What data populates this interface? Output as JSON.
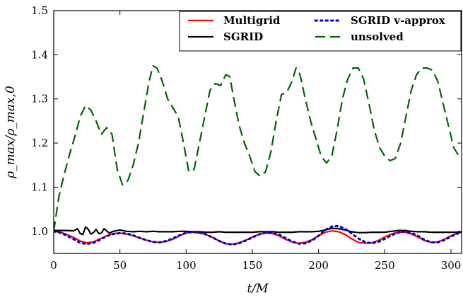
{
  "chart_data": {
    "type": "line",
    "title": "",
    "xlabel": "t/M",
    "ylabel": "ρ_max/ρ_max,0",
    "xlim": [
      0,
      308
    ],
    "ylim": [
      0.95,
      1.5
    ],
    "xticks": [
      0,
      50,
      100,
      150,
      200,
      250,
      300
    ],
    "yticks": [
      1.0,
      1.1,
      1.2,
      1.3,
      1.4,
      1.5
    ],
    "xtick_labels": [
      "0",
      "50",
      "100",
      "150",
      "200",
      "250",
      "300"
    ],
    "ytick_labels": [
      "1.0",
      "1.1",
      "1.2",
      "1.3",
      "1.4",
      "1.5"
    ],
    "grid": false,
    "legend_position": "top-right",
    "series": [
      {
        "name": "Multigrid",
        "color": "#ff0000",
        "dash": "solid",
        "points": [
          [
            0,
            1.0
          ],
          [
            5,
            0.998
          ],
          [
            10,
            0.993
          ],
          [
            15,
            0.986
          ],
          [
            20,
            0.978
          ],
          [
            25,
            0.974
          ],
          [
            30,
            0.976
          ],
          [
            35,
            0.983
          ],
          [
            40,
            0.99
          ],
          [
            45,
            0.995
          ],
          [
            50,
            0.996
          ],
          [
            55,
            0.994
          ],
          [
            60,
            0.99
          ],
          [
            65,
            0.985
          ],
          [
            70,
            0.98
          ],
          [
            75,
            0.976
          ],
          [
            80,
            0.975
          ],
          [
            85,
            0.977
          ],
          [
            90,
            0.982
          ],
          [
            95,
            0.99
          ],
          [
            100,
            0.996
          ],
          [
            105,
            0.998
          ],
          [
            110,
            0.996
          ],
          [
            115,
            0.993
          ],
          [
            120,
            0.986
          ],
          [
            125,
            0.978
          ],
          [
            130,
            0.972
          ],
          [
            135,
            0.971
          ],
          [
            140,
            0.974
          ],
          [
            145,
            0.98
          ],
          [
            150,
            0.987
          ],
          [
            155,
            0.993
          ],
          [
            160,
            0.996
          ],
          [
            165,
            0.995
          ],
          [
            170,
            0.99
          ],
          [
            175,
            0.982
          ],
          [
            180,
            0.976
          ],
          [
            185,
            0.973
          ],
          [
            190,
            0.975
          ],
          [
            195,
            0.981
          ],
          [
            200,
            0.99
          ],
          [
            205,
            0.998
          ],
          [
            210,
            1.001
          ],
          [
            215,
            0.999
          ],
          [
            220,
            0.993
          ],
          [
            225,
            0.983
          ],
          [
            230,
            0.975
          ],
          [
            235,
            0.973
          ],
          [
            240,
            0.974
          ],
          [
            245,
            0.979
          ],
          [
            250,
            0.987
          ],
          [
            255,
            0.994
          ],
          [
            260,
            0.998
          ],
          [
            265,
            0.998
          ],
          [
            270,
            0.994
          ],
          [
            275,
            0.987
          ],
          [
            280,
            0.979
          ],
          [
            285,
            0.975
          ],
          [
            290,
            0.976
          ],
          [
            295,
            0.982
          ],
          [
            300,
            0.99
          ],
          [
            305,
            0.996
          ],
          [
            308,
            0.998
          ]
        ]
      },
      {
        "name": "SGRID",
        "color": "#000000",
        "dash": "solid",
        "points": [
          [
            0,
            1.002
          ],
          [
            5,
            1.002
          ],
          [
            10,
            1.002
          ],
          [
            15,
            1.001
          ],
          [
            18,
            1.006
          ],
          [
            20,
            0.995
          ],
          [
            22,
            0.993
          ],
          [
            24,
            1.01
          ],
          [
            26,
            1.005
          ],
          [
            28,
            0.994
          ],
          [
            30,
            0.997
          ],
          [
            32,
            1.004
          ],
          [
            34,
            0.995
          ],
          [
            36,
            0.996
          ],
          [
            38,
            1.006
          ],
          [
            40,
            1.001
          ],
          [
            42,
            0.996
          ],
          [
            45,
            1.0
          ],
          [
            50,
            1.003
          ],
          [
            55,
            1.0
          ],
          [
            60,
            0.999
          ],
          [
            65,
            1.0
          ],
          [
            70,
            0.999
          ],
          [
            75,
            1.0
          ],
          [
            80,
            0.999
          ],
          [
            85,
            0.999
          ],
          [
            90,
            0.999
          ],
          [
            95,
            1.0
          ],
          [
            100,
            1.0
          ],
          [
            105,
            0.999
          ],
          [
            110,
            0.999
          ],
          [
            115,
            0.998
          ],
          [
            120,
            0.998
          ],
          [
            125,
            0.999
          ],
          [
            130,
            0.998
          ],
          [
            135,
            0.998
          ],
          [
            140,
            0.998
          ],
          [
            145,
            0.998
          ],
          [
            150,
            0.998
          ],
          [
            155,
            0.999
          ],
          [
            160,
            0.999
          ],
          [
            165,
            0.999
          ],
          [
            170,
            0.998
          ],
          [
            175,
            0.998
          ],
          [
            180,
            0.998
          ],
          [
            185,
            0.999
          ],
          [
            190,
            0.999
          ],
          [
            195,
            0.999
          ],
          [
            200,
            1.0
          ],
          [
            205,
            1.003
          ],
          [
            210,
            1.007
          ],
          [
            215,
            1.006
          ],
          [
            220,
            1.003
          ],
          [
            225,
            0.999
          ],
          [
            230,
            0.997
          ],
          [
            235,
            0.997
          ],
          [
            240,
            0.998
          ],
          [
            245,
            0.998
          ],
          [
            250,
            0.998
          ],
          [
            255,
            1.0
          ],
          [
            260,
            1.002
          ],
          [
            265,
            1.002
          ],
          [
            270,
            1.0
          ],
          [
            275,
            0.999
          ],
          [
            280,
            0.999
          ],
          [
            285,
            0.998
          ],
          [
            290,
            0.998
          ],
          [
            295,
            0.998
          ],
          [
            300,
            0.998
          ],
          [
            305,
            0.998
          ],
          [
            308,
            0.998
          ]
        ]
      },
      {
        "name": "SGRID v-approx",
        "color": "#0000cc",
        "dash": "dotted",
        "points": [
          [
            0,
            1.0
          ],
          [
            5,
            0.997
          ],
          [
            10,
            0.99
          ],
          [
            15,
            0.982
          ],
          [
            20,
            0.974
          ],
          [
            25,
            0.971
          ],
          [
            30,
            0.974
          ],
          [
            35,
            0.981
          ],
          [
            40,
            0.989
          ],
          [
            45,
            0.994
          ],
          [
            50,
            0.996
          ],
          [
            55,
            0.995
          ],
          [
            60,
            0.991
          ],
          [
            65,
            0.985
          ],
          [
            70,
            0.98
          ],
          [
            75,
            0.976
          ],
          [
            80,
            0.975
          ],
          [
            85,
            0.978
          ],
          [
            90,
            0.984
          ],
          [
            95,
            0.991
          ],
          [
            100,
            0.997
          ],
          [
            105,
            0.999
          ],
          [
            110,
            0.997
          ],
          [
            115,
            0.993
          ],
          [
            120,
            0.986
          ],
          [
            125,
            0.978
          ],
          [
            130,
            0.972
          ],
          [
            135,
            0.97
          ],
          [
            140,
            0.973
          ],
          [
            145,
            0.979
          ],
          [
            150,
            0.986
          ],
          [
            155,
            0.993
          ],
          [
            160,
            0.997
          ],
          [
            165,
            0.997
          ],
          [
            170,
            0.993
          ],
          [
            175,
            0.985
          ],
          [
            180,
            0.977
          ],
          [
            185,
            0.972
          ],
          [
            190,
            0.973
          ],
          [
            195,
            0.979
          ],
          [
            200,
            0.99
          ],
          [
            205,
            1.003
          ],
          [
            210,
            1.011
          ],
          [
            215,
            1.012
          ],
          [
            220,
            1.006
          ],
          [
            225,
            0.995
          ],
          [
            230,
            0.984
          ],
          [
            235,
            0.976
          ],
          [
            240,
            0.973
          ],
          [
            245,
            0.976
          ],
          [
            250,
            0.983
          ],
          [
            255,
            0.991
          ],
          [
            260,
            0.997
          ],
          [
            265,
            1.0
          ],
          [
            270,
            0.997
          ],
          [
            275,
            0.99
          ],
          [
            280,
            0.981
          ],
          [
            285,
            0.975
          ],
          [
            290,
            0.975
          ],
          [
            295,
            0.98
          ],
          [
            300,
            0.988
          ],
          [
            305,
            0.995
          ],
          [
            308,
            0.998
          ]
        ]
      },
      {
        "name": "unsolved",
        "color": "#006400",
        "dash": "dashed",
        "points": [
          [
            0,
            1.0
          ],
          [
            4,
            1.08
          ],
          [
            8,
            1.13
          ],
          [
            12,
            1.175
          ],
          [
            16,
            1.215
          ],
          [
            20,
            1.26
          ],
          [
            24,
            1.285
          ],
          [
            28,
            1.275
          ],
          [
            32,
            1.25
          ],
          [
            36,
            1.22
          ],
          [
            40,
            1.235
          ],
          [
            44,
            1.22
          ],
          [
            48,
            1.14
          ],
          [
            52,
            1.105
          ],
          [
            56,
            1.115
          ],
          [
            60,
            1.15
          ],
          [
            64,
            1.2
          ],
          [
            68,
            1.27
          ],
          [
            72,
            1.34
          ],
          [
            75,
            1.375
          ],
          [
            78,
            1.37
          ],
          [
            82,
            1.34
          ],
          [
            86,
            1.3
          ],
          [
            90,
            1.28
          ],
          [
            94,
            1.26
          ],
          [
            98,
            1.2
          ],
          [
            102,
            1.135
          ],
          [
            106,
            1.14
          ],
          [
            110,
            1.2
          ],
          [
            114,
            1.26
          ],
          [
            118,
            1.32
          ],
          [
            122,
            1.335
          ],
          [
            126,
            1.33
          ],
          [
            130,
            1.355
          ],
          [
            133,
            1.35
          ],
          [
            136,
            1.3
          ],
          [
            140,
            1.24
          ],
          [
            144,
            1.2
          ],
          [
            148,
            1.17
          ],
          [
            152,
            1.135
          ],
          [
            156,
            1.125
          ],
          [
            160,
            1.135
          ],
          [
            164,
            1.18
          ],
          [
            168,
            1.25
          ],
          [
            172,
            1.31
          ],
          [
            176,
            1.315
          ],
          [
            180,
            1.34
          ],
          [
            183,
            1.37
          ],
          [
            186,
            1.355
          ],
          [
            190,
            1.3
          ],
          [
            194,
            1.25
          ],
          [
            198,
            1.21
          ],
          [
            202,
            1.17
          ],
          [
            206,
            1.155
          ],
          [
            210,
            1.17
          ],
          [
            214,
            1.23
          ],
          [
            218,
            1.3
          ],
          [
            222,
            1.345
          ],
          [
            226,
            1.37
          ],
          [
            230,
            1.37
          ],
          [
            234,
            1.345
          ],
          [
            238,
            1.29
          ],
          [
            242,
            1.23
          ],
          [
            246,
            1.19
          ],
          [
            250,
            1.17
          ],
          [
            254,
            1.16
          ],
          [
            258,
            1.165
          ],
          [
            262,
            1.2
          ],
          [
            266,
            1.26
          ],
          [
            270,
            1.32
          ],
          [
            274,
            1.355
          ],
          [
            278,
            1.37
          ],
          [
            282,
            1.37
          ],
          [
            286,
            1.365
          ],
          [
            290,
            1.34
          ],
          [
            294,
            1.29
          ],
          [
            298,
            1.24
          ],
          [
            302,
            1.19
          ],
          [
            306,
            1.17
          ],
          [
            308,
            1.165
          ]
        ]
      }
    ]
  }
}
